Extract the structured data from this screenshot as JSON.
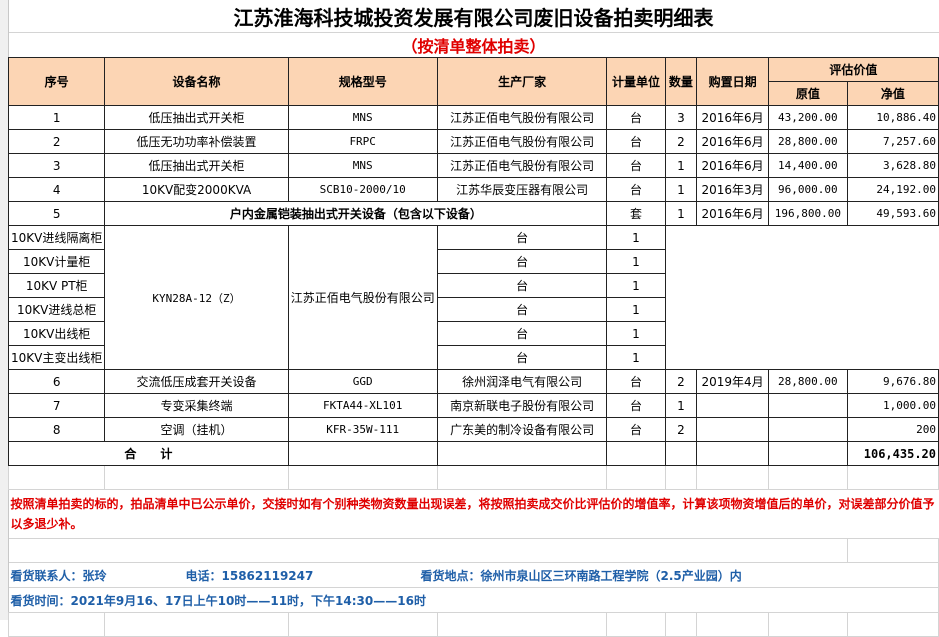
{
  "title": "江苏淮海科技城投资发展有限公司废旧设备拍卖明细表",
  "subtitle": "（按清单整体拍卖）",
  "headers": {
    "no": "序号",
    "name": "设备名称",
    "model": "规格型号",
    "maker": "生产厂家",
    "unit": "计量单位",
    "qty": "数量",
    "date": "购置日期",
    "eval": "评估价值",
    "orig": "原值",
    "net": "净值"
  },
  "rows": [
    {
      "no": "1",
      "name": "低压抽出式开关柜",
      "model": "MNS",
      "maker": "江苏正佰电气股份有限公司",
      "unit": "台",
      "qty": "3",
      "date": "2016年6月",
      "orig": "43,200.00",
      "net": "10,886.40"
    },
    {
      "no": "2",
      "name": "低压无功功率补偿装置",
      "model": "FRPC",
      "maker": "江苏正佰电气股份有限公司",
      "unit": "台",
      "qty": "2",
      "date": "2016年6月",
      "orig": "28,800.00",
      "net": "7,257.60"
    },
    {
      "no": "3",
      "name": "低压抽出式开关柜",
      "model": "MNS",
      "maker": "江苏正佰电气股份有限公司",
      "unit": "台",
      "qty": "1",
      "date": "2016年6月",
      "orig": "14,400.00",
      "net": "3,628.80"
    },
    {
      "no": "4",
      "name": "10KV配变2000KVA",
      "model": "SCB10-2000/10",
      "maker": "江苏华辰变压器有限公司",
      "unit": "台",
      "qty": "1",
      "date": "2016年3月",
      "orig": "96,000.00",
      "net": "24,192.00"
    }
  ],
  "group": {
    "no": "5",
    "title": "户内金属铠装抽出式开关设备（包含以下设备）",
    "title_unit": "套",
    "title_qty": "1",
    "model": "KYN28A-12（Z）",
    "maker": "江苏正佰电气股份有限公司",
    "date": "2016年6月",
    "orig": "196,800.00",
    "net": "49,593.60",
    "items": [
      {
        "name": "10KV进线隔离柜",
        "unit": "台",
        "qty": "1"
      },
      {
        "name": "10KV计量柜",
        "unit": "台",
        "qty": "1"
      },
      {
        "name": "10KV PT柜",
        "unit": "台",
        "qty": "1"
      },
      {
        "name": "10KV进线总柜",
        "unit": "台",
        "qty": "1"
      },
      {
        "name": "10KV出线柜",
        "unit": "台",
        "qty": "1"
      },
      {
        "name": "10KV主变出线柜",
        "unit": "台",
        "qty": "1"
      }
    ]
  },
  "rows2": [
    {
      "no": "6",
      "name": "交流低压成套开关设备",
      "model": "GGD",
      "maker": "徐州润泽电气有限公司",
      "unit": "台",
      "qty": "2",
      "date": "2019年4月",
      "orig": "28,800.00",
      "net": "9,676.80"
    },
    {
      "no": "7",
      "name": "专变采集终端",
      "model": "FKTA44-XL101",
      "maker": "南京新联电子股份有限公司",
      "unit": "台",
      "qty": "1",
      "date": "",
      "orig": "",
      "net": "1,000.00"
    },
    {
      "no": "8",
      "name": "空调（挂机）",
      "model": "KFR-35W-111",
      "maker": "广东美的制冷设备有限公司",
      "unit": "台",
      "qty": "2",
      "date": "",
      "orig": "",
      "net": "200"
    }
  ],
  "total": {
    "label": "合　　计",
    "net": "106,435.20"
  },
  "note": "按照清单拍卖的标的，拍品清单中已公示单价，交接时如有个别种类物资数量出现误差，将按照拍卖成交价比评估价的增值率，计算该项物资增值后的单价，对误差部分价值予以多退少补。",
  "contact": {
    "person": "看货联系人：张玲",
    "phone": "电话：15862119247",
    "place": "看货地点：徐州市泉山区三环南路工程学院（2.5产业园）内",
    "time": "看货时间：2021年9月16、17日上午10时——11时，下午14:30——16时"
  },
  "colors": {
    "header_bg": "#fcd5b4",
    "note": "#e00000",
    "contact": "#1f5fa8"
  }
}
